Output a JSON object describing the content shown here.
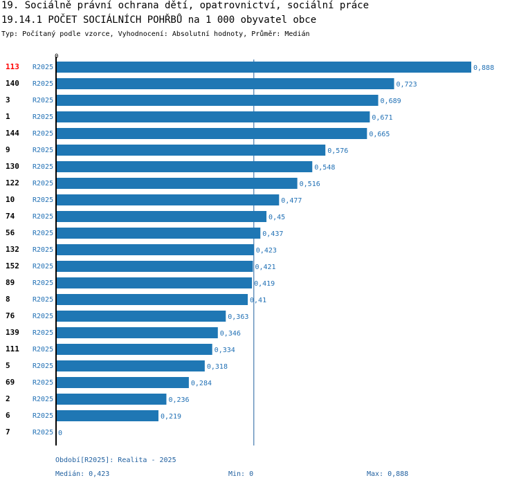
{
  "header": {
    "title": "19. Sociálně právní ochrana dětí, opatrovnictví, sociální práce",
    "subtitle": "19.14.1 POČET SOCIÁLNÍCH POHŘBŮ na 1 000 obyvatel obce",
    "info": "Typ: Počítaný podle vzorce, Vyhodnocení: Absolutní hodnoty, Průměr: Medián"
  },
  "chart_data": {
    "type": "bar",
    "orientation": "horizontal",
    "title": "19.14.1 POČET SOCIÁLNÍCH POHŘBŮ na 1 000 obyvatel obce",
    "axis_zero_label": "0",
    "xlim": [
      0,
      0.888
    ],
    "median_value": 0.423,
    "bar_color": "#1f77b4",
    "highlight_color": "#ff0000",
    "rows": [
      {
        "id": "113",
        "period": "R2025",
        "value": 0.888,
        "label": "0,888",
        "highlight": true
      },
      {
        "id": "140",
        "period": "R2025",
        "value": 0.723,
        "label": "0,723",
        "highlight": false
      },
      {
        "id": "3",
        "period": "R2025",
        "value": 0.689,
        "label": "0,689",
        "highlight": false
      },
      {
        "id": "1",
        "period": "R2025",
        "value": 0.671,
        "label": "0,671",
        "highlight": false
      },
      {
        "id": "144",
        "period": "R2025",
        "value": 0.665,
        "label": "0,665",
        "highlight": false
      },
      {
        "id": "9",
        "period": "R2025",
        "value": 0.576,
        "label": "0,576",
        "highlight": false
      },
      {
        "id": "130",
        "period": "R2025",
        "value": 0.548,
        "label": "0,548",
        "highlight": false
      },
      {
        "id": "122",
        "period": "R2025",
        "value": 0.516,
        "label": "0,516",
        "highlight": false
      },
      {
        "id": "10",
        "period": "R2025",
        "value": 0.477,
        "label": "0,477",
        "highlight": false
      },
      {
        "id": "74",
        "period": "R2025",
        "value": 0.45,
        "label": "0,45",
        "highlight": false
      },
      {
        "id": "56",
        "period": "R2025",
        "value": 0.437,
        "label": "0,437",
        "highlight": false
      },
      {
        "id": "132",
        "period": "R2025",
        "value": 0.423,
        "label": "0,423",
        "highlight": false
      },
      {
        "id": "152",
        "period": "R2025",
        "value": 0.421,
        "label": "0,421",
        "highlight": false
      },
      {
        "id": "89",
        "period": "R2025",
        "value": 0.419,
        "label": "0,419",
        "highlight": false
      },
      {
        "id": "8",
        "period": "R2025",
        "value": 0.41,
        "label": "0,41",
        "highlight": false
      },
      {
        "id": "76",
        "period": "R2025",
        "value": 0.363,
        "label": "0,363",
        "highlight": false
      },
      {
        "id": "139",
        "period": "R2025",
        "value": 0.346,
        "label": "0,346",
        "highlight": false
      },
      {
        "id": "111",
        "period": "R2025",
        "value": 0.334,
        "label": "0,334",
        "highlight": false
      },
      {
        "id": "5",
        "period": "R2025",
        "value": 0.318,
        "label": "0,318",
        "highlight": false
      },
      {
        "id": "69",
        "period": "R2025",
        "value": 0.284,
        "label": "0,284",
        "highlight": false
      },
      {
        "id": "2",
        "period": "R2025",
        "value": 0.236,
        "label": "0,236",
        "highlight": false
      },
      {
        "id": "6",
        "period": "R2025",
        "value": 0.219,
        "label": "0,219",
        "highlight": false
      },
      {
        "id": "7",
        "period": "R2025",
        "value": 0,
        "label": "0",
        "highlight": false
      }
    ]
  },
  "footer": {
    "period_note": "Období[R2025]: Realita - 2025",
    "median": "Medián: 0,423",
    "min": "Min: 0",
    "max": "Max: 0,888"
  }
}
